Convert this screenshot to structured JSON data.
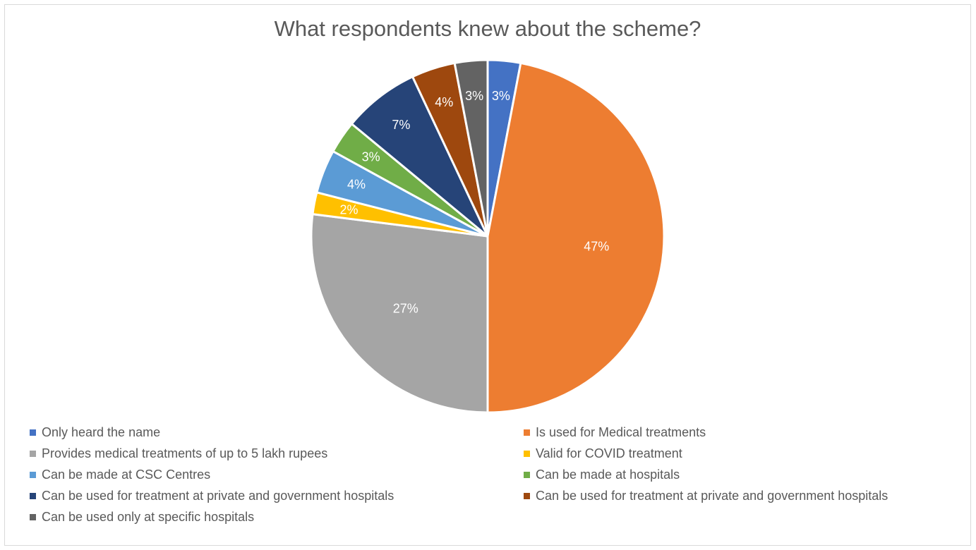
{
  "chart_data": {
    "type": "pie",
    "title": "What respondents knew about the scheme?",
    "legend_position": "bottom",
    "slices": [
      {
        "label": "Only heard the name",
        "value": 3,
        "data_label": "3%",
        "color": "#4472C4"
      },
      {
        "label": "Is used for Medical treatments",
        "value": 47,
        "data_label": "47%",
        "color": "#ED7D31"
      },
      {
        "label": "Provides medical treatments of up to 5 lakh rupees",
        "value": 27,
        "data_label": "27%",
        "color": "#A5A5A5"
      },
      {
        "label": "Valid for COVID treatment",
        "value": 2,
        "data_label": "2%",
        "color": "#FFC000"
      },
      {
        "label": "Can be made at CSC Centres",
        "value": 4,
        "data_label": "4%",
        "color": "#5B9BD5"
      },
      {
        "label": "Can be made at hospitals",
        "value": 3,
        "data_label": "3%",
        "color": "#70AD47"
      },
      {
        "label": "Can be used for treatment at private and government hospitals",
        "value": 7,
        "data_label": "7%",
        "color": "#264478"
      },
      {
        "label": "Can be used for treatment at private and government hospitals",
        "value": 4,
        "data_label": "4%",
        "color": "#9E480E"
      },
      {
        "label": "Can be used only at specific hospitals",
        "value": 3,
        "data_label": "3%",
        "color": "#636363"
      }
    ]
  }
}
